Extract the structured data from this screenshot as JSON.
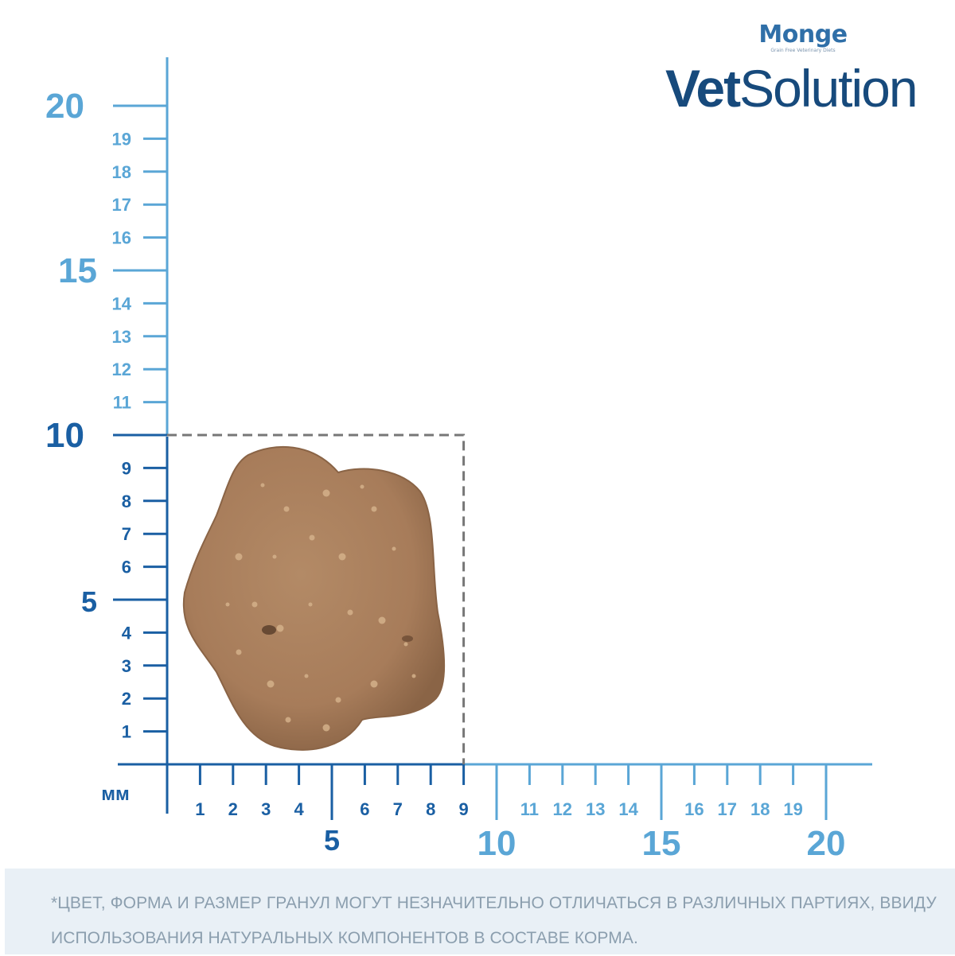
{
  "brand": {
    "monge": "Monge",
    "monge_tagline": "Grain Free Veterinary Diets",
    "vet_bold": "Vet",
    "vet_regular": "Solution"
  },
  "ruler": {
    "unit_label": "мм",
    "y_major": [
      {
        "value": 20,
        "label": "20",
        "color": "light"
      },
      {
        "value": 15,
        "label": "15",
        "color": "light"
      },
      {
        "value": 10,
        "label": "10",
        "color": "dark"
      },
      {
        "value": 5,
        "label": "5",
        "color": "dark"
      }
    ],
    "y_minor": [
      {
        "value": 19,
        "label": "19"
      },
      {
        "value": 18,
        "label": "18"
      },
      {
        "value": 17,
        "label": "17"
      },
      {
        "value": 16,
        "label": "16"
      },
      {
        "value": 14,
        "label": "14"
      },
      {
        "value": 13,
        "label": "13"
      },
      {
        "value": 12,
        "label": "12"
      },
      {
        "value": 11,
        "label": "11"
      },
      {
        "value": 9,
        "label": "9"
      },
      {
        "value": 8,
        "label": "8"
      },
      {
        "value": 7,
        "label": "7"
      },
      {
        "value": 6,
        "label": "6"
      },
      {
        "value": 4,
        "label": "4"
      },
      {
        "value": 3,
        "label": "3"
      },
      {
        "value": 2,
        "label": "2"
      },
      {
        "value": 1,
        "label": "1"
      }
    ],
    "x_major": [
      {
        "value": 5,
        "label": "5",
        "color": "dark"
      },
      {
        "value": 10,
        "label": "10",
        "color": "light"
      },
      {
        "value": 15,
        "label": "15",
        "color": "light"
      },
      {
        "value": 20,
        "label": "20",
        "color": "light"
      }
    ],
    "x_minor": [
      {
        "value": 1,
        "label": "1"
      },
      {
        "value": 2,
        "label": "2"
      },
      {
        "value": 3,
        "label": "3"
      },
      {
        "value": 4,
        "label": "4"
      },
      {
        "value": 6,
        "label": "6"
      },
      {
        "value": 7,
        "label": "7"
      },
      {
        "value": 8,
        "label": "8"
      },
      {
        "value": 9,
        "label": "9"
      },
      {
        "value": 11,
        "label": "11"
      },
      {
        "value": 12,
        "label": "12"
      },
      {
        "value": 13,
        "label": "13"
      },
      {
        "value": 14,
        "label": "14"
      },
      {
        "value": 16,
        "label": "16"
      },
      {
        "value": 17,
        "label": "17"
      },
      {
        "value": 18,
        "label": "18"
      },
      {
        "value": 19,
        "label": "19"
      }
    ],
    "dashed_box_size_mm": 9,
    "colors": {
      "dark": "#1a5fa3",
      "light": "#5aa6d6",
      "dashed": "#777777"
    }
  },
  "kibble": {
    "colors": {
      "fill": "#a77c5a",
      "shade": "#8a6446",
      "speck": "#d4b08a"
    }
  },
  "footer": {
    "note": "*ЦВЕТ, ФОРМА И РАЗМЕР ГРАНУЛ МОГУТ НЕЗНАЧИТЕЛЬНО ОТЛИЧАТЬСЯ В РАЗЛИЧНЫХ ПАРТИЯХ, ВВИДУ ИСПОЛЬЗОВАНИЯ НАТУРАЛЬНЫХ КОМПОНЕНТОВ В СОСТАВЕ КОРМА."
  }
}
